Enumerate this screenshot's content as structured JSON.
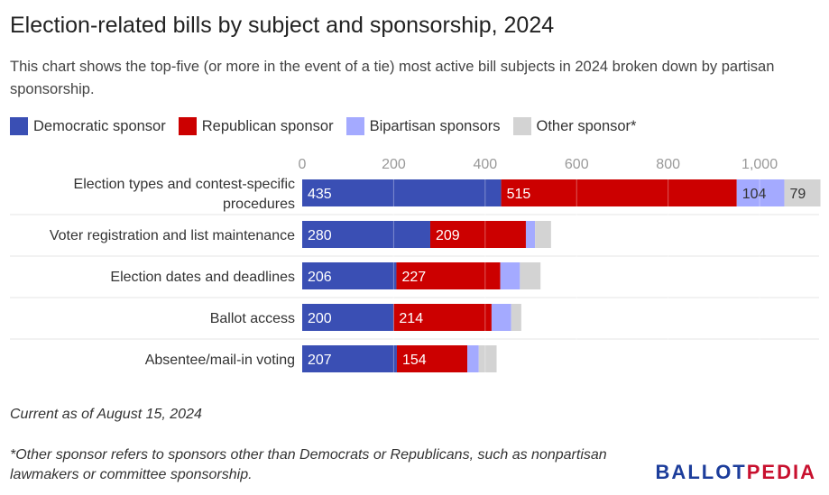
{
  "title": "Election-related bills by subject and sponsorship, 2024",
  "subtitle": "This chart shows the top-five (or more in the event of a tie) most active bill subjects in 2024 broken down by partisan sponsorship.",
  "legend": [
    {
      "label": "Democratic sponsor",
      "color": "#3a4fb4"
    },
    {
      "label": "Republican sponsor",
      "color": "#cc0000"
    },
    {
      "label": "Bipartisan sponsors",
      "color": "#a4aaff"
    },
    {
      "label": "Other sponsor*",
      "color": "#d3d3d3"
    }
  ],
  "chart_data": {
    "type": "bar",
    "orientation": "horizontal",
    "stacked": true,
    "categories": [
      "Election types and contest-specific procedures",
      "Voter registration and list maintenance",
      "Election dates and deadlines",
      "Ballot access",
      "Absentee/mail-in voting"
    ],
    "category_lines": [
      [
        "Election types and contest-specific",
        "procedures"
      ],
      [
        "Voter registration and list maintenance"
      ],
      [
        "Election dates and deadlines"
      ],
      [
        "Ballot access"
      ],
      [
        "Absentee/mail-in voting"
      ]
    ],
    "series": [
      {
        "name": "Democratic sponsor",
        "values": [
          435,
          280,
          206,
          200,
          207
        ],
        "color": "#3a4fb4"
      },
      {
        "name": "Republican sponsor",
        "values": [
          515,
          209,
          227,
          214,
          154
        ],
        "color": "#cc0000"
      },
      {
        "name": "Bipartisan sponsors",
        "values": [
          104,
          20,
          43,
          43,
          25
        ],
        "color": "#a4aaff"
      },
      {
        "name": "Other sponsor*",
        "values": [
          79,
          35,
          45,
          22,
          39
        ],
        "color": "#d3d3d3"
      }
    ],
    "show_value_labels_above": 50,
    "xlim": [
      0,
      1130
    ],
    "xticks": [
      0,
      200,
      400,
      600,
      800,
      1000
    ],
    "xtick_labels": [
      "0",
      "200",
      "400",
      "600",
      "800",
      "1,000"
    ],
    "grid": true,
    "axis_position": "top",
    "legend_position": "top-left"
  },
  "note": "Current as of August 15, 2024",
  "footnote": "*Other sponsor refers to sponsors other than Democrats or Republicans, such as nonpartisan lawmakers or committee sponsorship.",
  "logo": {
    "part1": "BALLOT",
    "part2": "PEDIA"
  }
}
